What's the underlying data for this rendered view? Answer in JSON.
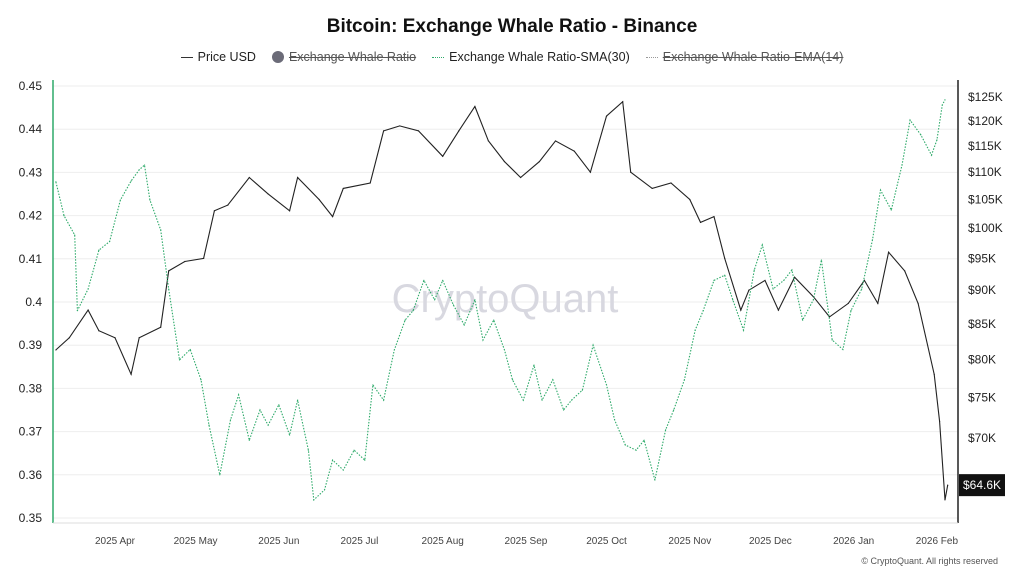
{
  "title": "Bitcoin: Exchange Whale Ratio - Binance",
  "legend": [
    {
      "label": "Price USD",
      "hidden": false
    },
    {
      "label": "Exchange Whale Ratio",
      "hidden": true
    },
    {
      "label": "Exchange Whale Ratio-SMA(30)",
      "hidden": false
    },
    {
      "label": "Exchange Whale Ratio-EMA(14)",
      "hidden": true
    }
  ],
  "watermark": "CryptoQuant",
  "footer": "© CryptoQuant. All rights reserved",
  "current_price_label": "$64.6K",
  "colors": {
    "price": "#222222",
    "sma": "#2eaa6a",
    "left_axis": "#2eaa6a",
    "right_axis": "#222222",
    "grid": "#eeeeee"
  },
  "chart_data": {
    "type": "line",
    "title": "Bitcoin: Exchange Whale Ratio - Binance",
    "grid": true,
    "legend_position": "top",
    "x_ticks": [
      "2025 Apr",
      "2025 May",
      "2025 Jun",
      "2025 Jul",
      "2025 Aug",
      "2025 Sep",
      "2025 Oct",
      "2025 Nov",
      "2025 Dec",
      "2026 Jan",
      "2026 Feb"
    ],
    "y_left": {
      "ticks": [
        "0.35",
        "0.36",
        "0.37",
        "0.38",
        "0.39",
        "0.4",
        "0.41",
        "0.42",
        "0.43",
        "0.44",
        "0.45"
      ],
      "range": [
        0.35,
        0.45
      ]
    },
    "y_right": {
      "scale": "log",
      "ticks": [
        "$70K",
        "$75K",
        "$80K",
        "$85K",
        "$90K",
        "$95K",
        "$100K",
        "$105K",
        "$110K",
        "$115K",
        "$120K",
        "$125K"
      ],
      "tick_values": [
        70000,
        75000,
        80000,
        85000,
        90000,
        95000,
        100000,
        105000,
        110000,
        115000,
        120000,
        125000
      ]
    },
    "series": [
      {
        "name": "Price USD",
        "axis": "right",
        "points": [
          [
            "2025-03-10",
            81300
          ],
          [
            "2025-03-15",
            83000
          ],
          [
            "2025-03-22",
            87000
          ],
          [
            "2025-03-26",
            84000
          ],
          [
            "2025-04-01",
            83000
          ],
          [
            "2025-04-07",
            78000
          ],
          [
            "2025-04-10",
            83000
          ],
          [
            "2025-04-18",
            84500
          ],
          [
            "2025-04-21",
            93000
          ],
          [
            "2025-04-27",
            94500
          ],
          [
            "2025-05-04",
            95000
          ],
          [
            "2025-05-08",
            103000
          ],
          [
            "2025-05-13",
            104000
          ],
          [
            "2025-05-21",
            109000
          ],
          [
            "2025-05-28",
            106000
          ],
          [
            "2025-06-05",
            103000
          ],
          [
            "2025-06-08",
            109000
          ],
          [
            "2025-06-16",
            105000
          ],
          [
            "2025-06-21",
            102000
          ],
          [
            "2025-06-25",
            107000
          ],
          [
            "2025-07-05",
            108000
          ],
          [
            "2025-07-10",
            118000
          ],
          [
            "2025-07-16",
            119000
          ],
          [
            "2025-07-23",
            118000
          ],
          [
            "2025-08-01",
            113000
          ],
          [
            "2025-08-07",
            118000
          ],
          [
            "2025-08-13",
            123000
          ],
          [
            "2025-08-18",
            116000
          ],
          [
            "2025-08-24",
            112000
          ],
          [
            "2025-08-30",
            109000
          ],
          [
            "2025-09-06",
            112000
          ],
          [
            "2025-09-12",
            116000
          ],
          [
            "2025-09-19",
            114000
          ],
          [
            "2025-09-25",
            110000
          ],
          [
            "2025-10-01",
            121000
          ],
          [
            "2025-10-07",
            124000
          ],
          [
            "2025-10-10",
            110000
          ],
          [
            "2025-10-18",
            107000
          ],
          [
            "2025-10-25",
            108000
          ],
          [
            "2025-11-01",
            105000
          ],
          [
            "2025-11-05",
            101000
          ],
          [
            "2025-11-10",
            102000
          ],
          [
            "2025-11-14",
            95000
          ],
          [
            "2025-11-20",
            87000
          ],
          [
            "2025-11-23",
            90000
          ],
          [
            "2025-11-29",
            91500
          ],
          [
            "2025-12-04",
            87000
          ],
          [
            "2025-12-10",
            92000
          ],
          [
            "2025-12-17",
            89000
          ],
          [
            "2025-12-23",
            86000
          ],
          [
            "2025-12-30",
            88000
          ],
          [
            "2026-01-05",
            91500
          ],
          [
            "2026-01-10",
            88000
          ],
          [
            "2026-01-14",
            96000
          ],
          [
            "2026-01-20",
            93000
          ],
          [
            "2026-01-25",
            88000
          ],
          [
            "2026-01-31",
            78000
          ],
          [
            "2026-02-02",
            72000
          ],
          [
            "2026-02-04",
            63000
          ],
          [
            "2026-02-05",
            64600
          ]
        ]
      },
      {
        "name": "Exchange Whale Ratio-SMA(30)",
        "axis": "left",
        "points": [
          [
            "2025-03-10",
            0.4278
          ],
          [
            "2025-03-13",
            0.42
          ],
          [
            "2025-03-17",
            0.4155
          ],
          [
            "2025-03-18",
            0.398
          ],
          [
            "2025-03-22",
            0.403
          ],
          [
            "2025-03-26",
            0.412
          ],
          [
            "2025-03-30",
            0.414
          ],
          [
            "2025-04-03",
            0.4236
          ],
          [
            "2025-04-07",
            0.428
          ],
          [
            "2025-04-10",
            0.4306
          ],
          [
            "2025-04-12",
            0.4317
          ],
          [
            "2025-04-14",
            0.4236
          ],
          [
            "2025-04-18",
            0.4167
          ],
          [
            "2025-04-21",
            0.403
          ],
          [
            "2025-04-25",
            0.3866
          ],
          [
            "2025-04-29",
            0.389
          ],
          [
            "2025-05-03",
            0.382
          ],
          [
            "2025-05-06",
            0.3715
          ],
          [
            "2025-05-10",
            0.36
          ],
          [
            "2025-05-14",
            0.3727
          ],
          [
            "2025-05-17",
            0.3785
          ],
          [
            "2025-05-21",
            0.368
          ],
          [
            "2025-05-25",
            0.375
          ],
          [
            "2025-05-28",
            0.3715
          ],
          [
            "2025-06-01",
            0.3762
          ],
          [
            "2025-06-05",
            0.3692
          ],
          [
            "2025-06-08",
            0.3773
          ],
          [
            "2025-06-12",
            0.3657
          ],
          [
            "2025-06-14",
            0.3542
          ],
          [
            "2025-06-18",
            0.3565
          ],
          [
            "2025-06-21",
            0.3634
          ],
          [
            "2025-06-25",
            0.3611
          ],
          [
            "2025-06-29",
            0.3657
          ],
          [
            "2025-07-03",
            0.3634
          ],
          [
            "2025-07-06",
            0.3808
          ],
          [
            "2025-07-10",
            0.3773
          ],
          [
            "2025-07-14",
            0.3889
          ],
          [
            "2025-07-18",
            0.3958
          ],
          [
            "2025-07-21",
            0.398
          ],
          [
            "2025-07-25",
            0.405
          ],
          [
            "2025-07-29",
            0.4005
          ],
          [
            "2025-08-01",
            0.405
          ],
          [
            "2025-08-05",
            0.3993
          ],
          [
            "2025-08-09",
            0.3947
          ],
          [
            "2025-08-13",
            0.4005
          ],
          [
            "2025-08-16",
            0.3912
          ],
          [
            "2025-08-20",
            0.3958
          ],
          [
            "2025-08-24",
            0.3889
          ],
          [
            "2025-08-27",
            0.382
          ],
          [
            "2025-08-31",
            0.3773
          ],
          [
            "2025-09-04",
            0.3854
          ],
          [
            "2025-09-07",
            0.3773
          ],
          [
            "2025-09-11",
            0.382
          ],
          [
            "2025-09-15",
            0.375
          ],
          [
            "2025-09-18",
            0.3773
          ],
          [
            "2025-09-22",
            0.3796
          ],
          [
            "2025-09-26",
            0.39
          ],
          [
            "2025-10-01",
            0.3808
          ],
          [
            "2025-10-04",
            0.3727
          ],
          [
            "2025-10-08",
            0.3669
          ],
          [
            "2025-10-12",
            0.3657
          ],
          [
            "2025-10-15",
            0.368
          ],
          [
            "2025-10-19",
            0.3588
          ],
          [
            "2025-10-23",
            0.3704
          ],
          [
            "2025-10-26",
            0.375
          ],
          [
            "2025-10-30",
            0.382
          ],
          [
            "2025-11-03",
            0.3935
          ],
          [
            "2025-11-06",
            0.398
          ],
          [
            "2025-11-10",
            0.405
          ],
          [
            "2025-11-14",
            0.4062
          ],
          [
            "2025-11-17",
            0.4005
          ],
          [
            "2025-11-21",
            0.3935
          ],
          [
            "2025-11-25",
            0.4074
          ],
          [
            "2025-11-28",
            0.4132
          ],
          [
            "2025-12-02",
            0.403
          ],
          [
            "2025-12-06",
            0.405
          ],
          [
            "2025-12-09",
            0.4074
          ],
          [
            "2025-12-13",
            0.3958
          ],
          [
            "2025-12-17",
            0.4005
          ],
          [
            "2025-12-20",
            0.4097
          ],
          [
            "2025-12-24",
            0.3912
          ],
          [
            "2025-12-28",
            0.389
          ],
          [
            "2025-12-31",
            0.398
          ],
          [
            "2026-01-04",
            0.403
          ],
          [
            "2026-01-08",
            0.4144
          ],
          [
            "2026-01-11",
            0.4259
          ],
          [
            "2026-01-15",
            0.4213
          ],
          [
            "2026-01-19",
            0.4317
          ],
          [
            "2026-01-22",
            0.4421
          ],
          [
            "2026-01-26",
            0.4387
          ],
          [
            "2026-01-30",
            0.434
          ],
          [
            "2026-02-01",
            0.4375
          ],
          [
            "2026-02-03",
            0.4456
          ],
          [
            "2026-02-04",
            0.4468
          ]
        ]
      }
    ]
  }
}
